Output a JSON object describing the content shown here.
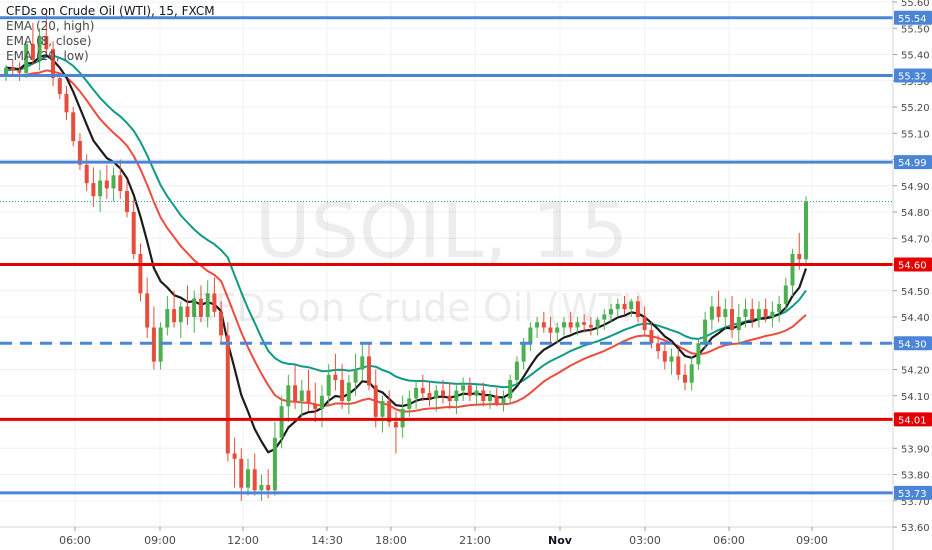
{
  "header": {
    "title": "CFDs on Crude Oil (WTI), 15, FXCM",
    "indicators": [
      "EMA (20, high)",
      "EMA (8, close)",
      "EMA (20, low)"
    ]
  },
  "watermark": {
    "symbol": "USOIL, 15",
    "description": "CFDs on Crude Oil (WTI)"
  },
  "colors": {
    "up": "#4caf50",
    "down": "#e84c3d",
    "ema_high": "#0f9a86",
    "ema_close": "#1c1c1c",
    "ema_low": "#ef4b3f",
    "support_blue": "#4a85d8",
    "level_red": "#e40000",
    "price_line": "#26a69a"
  },
  "chart_data": {
    "type": "candlestick",
    "ylim": [
      53.6,
      55.6
    ],
    "y_ticks": [
      "55.60",
      "55.50",
      "55.40",
      "55.30",
      "55.20",
      "55.10",
      "55.00",
      "54.90",
      "54.80",
      "54.70",
      "54.60",
      "54.50",
      "54.40",
      "54.30",
      "54.20",
      "54.10",
      "54.00",
      "53.90",
      "53.80",
      "53.70",
      "53.60"
    ],
    "x_ticks": [
      "06:00",
      "09:00",
      "12:00",
      "14:30",
      "18:00",
      "21:00",
      "Nov",
      "03:00",
      "06:00",
      "09:00"
    ],
    "horizontal_levels": [
      {
        "value": 55.54,
        "label": "55.54",
        "color": "#4a85d8",
        "style": "solid"
      },
      {
        "value": 55.32,
        "label": "55.32",
        "color": "#4a85d8",
        "style": "solid"
      },
      {
        "value": 54.99,
        "label": "54.99",
        "color": "#4a85d8",
        "style": "solid"
      },
      {
        "value": 54.6,
        "label": "54.60",
        "color": "#e40000",
        "style": "solid"
      },
      {
        "value": 54.3,
        "label": "54.30",
        "color": "#4a85d8",
        "style": "dashed"
      },
      {
        "value": 54.01,
        "label": "54.01",
        "color": "#e40000",
        "style": "solid"
      },
      {
        "value": 53.73,
        "label": "53.73",
        "color": "#4a85d8",
        "style": "solid"
      }
    ],
    "last_price": 54.84,
    "candles": [
      [
        55.32,
        55.36,
        55.3,
        55.35
      ],
      [
        55.35,
        55.38,
        55.32,
        55.34
      ],
      [
        55.34,
        55.37,
        55.3,
        55.33
      ],
      [
        55.33,
        55.45,
        55.31,
        55.44
      ],
      [
        55.44,
        55.52,
        55.36,
        55.38
      ],
      [
        55.38,
        55.5,
        55.34,
        55.47
      ],
      [
        55.47,
        55.56,
        55.4,
        55.42
      ],
      [
        55.42,
        55.45,
        55.28,
        55.31
      ],
      [
        55.31,
        55.33,
        55.23,
        55.25
      ],
      [
        55.25,
        55.28,
        55.15,
        55.18
      ],
      [
        55.18,
        55.2,
        55.05,
        55.07
      ],
      [
        55.07,
        55.1,
        54.96,
        54.98
      ],
      [
        54.98,
        55.02,
        54.88,
        54.91
      ],
      [
        54.91,
        54.97,
        54.82,
        54.86
      ],
      [
        54.86,
        54.96,
        54.8,
        54.92
      ],
      [
        54.92,
        54.98,
        54.85,
        54.89
      ],
      [
        54.89,
        54.97,
        54.84,
        54.94
      ],
      [
        54.94,
        55.0,
        54.85,
        54.88
      ],
      [
        54.88,
        54.92,
        54.78,
        54.8
      ],
      [
        54.8,
        54.85,
        54.62,
        54.64
      ],
      [
        54.64,
        54.68,
        54.46,
        54.49
      ],
      [
        54.49,
        54.55,
        54.32,
        54.36
      ],
      [
        54.36,
        54.44,
        54.2,
        54.23
      ],
      [
        54.23,
        54.38,
        54.2,
        54.36
      ],
      [
        54.36,
        54.48,
        54.33,
        54.43
      ],
      [
        54.43,
        54.5,
        54.36,
        54.38
      ],
      [
        54.38,
        54.46,
        54.32,
        54.44
      ],
      [
        54.44,
        54.52,
        54.37,
        54.4
      ],
      [
        54.4,
        54.5,
        54.34,
        54.47
      ],
      [
        54.47,
        54.52,
        54.38,
        54.4
      ],
      [
        54.4,
        54.54,
        54.36,
        54.49
      ],
      [
        54.49,
        54.55,
        54.4,
        54.42
      ],
      [
        54.42,
        54.46,
        54.3,
        54.33
      ],
      [
        54.33,
        54.38,
        53.85,
        53.88
      ],
      [
        53.88,
        53.94,
        53.75,
        53.86
      ],
      [
        53.86,
        53.9,
        53.7,
        53.75
      ],
      [
        53.75,
        53.86,
        53.72,
        53.82
      ],
      [
        53.82,
        53.88,
        53.72,
        53.74
      ],
      [
        53.74,
        53.8,
        53.7,
        53.76
      ],
      [
        53.76,
        53.82,
        53.71,
        53.74
      ],
      [
        53.74,
        54.0,
        53.72,
        53.94
      ],
      [
        53.94,
        54.1,
        53.9,
        54.06
      ],
      [
        54.06,
        54.18,
        54.0,
        54.14
      ],
      [
        54.14,
        54.22,
        54.05,
        54.08
      ],
      [
        54.08,
        54.16,
        54.02,
        54.12
      ],
      [
        54.12,
        54.2,
        54.04,
        54.07
      ],
      [
        54.07,
        54.15,
        54.0,
        54.05
      ],
      [
        54.05,
        54.14,
        53.98,
        54.1
      ],
      [
        54.1,
        54.22,
        54.06,
        54.18
      ],
      [
        54.18,
        54.26,
        54.12,
        54.16
      ],
      [
        54.16,
        54.22,
        54.05,
        54.08
      ],
      [
        54.08,
        54.18,
        54.03,
        54.15
      ],
      [
        54.15,
        54.26,
        54.1,
        54.2
      ],
      [
        54.2,
        54.3,
        54.16,
        54.25
      ],
      [
        54.25,
        54.3,
        54.12,
        54.14
      ],
      [
        54.14,
        54.2,
        53.98,
        54.02
      ],
      [
        54.02,
        54.1,
        53.96,
        54.08
      ],
      [
        54.08,
        54.12,
        53.98,
        54.0
      ],
      [
        54.0,
        54.04,
        53.88,
        53.98
      ],
      [
        53.98,
        54.1,
        53.94,
        54.05
      ],
      [
        54.05,
        54.12,
        54.02,
        54.09
      ],
      [
        54.09,
        54.16,
        54.05,
        54.13
      ],
      [
        54.13,
        54.18,
        54.08,
        54.11
      ],
      [
        54.11,
        54.15,
        54.06,
        54.09
      ],
      [
        54.09,
        54.14,
        54.04,
        54.12
      ],
      [
        54.12,
        54.16,
        54.07,
        54.1
      ],
      [
        54.1,
        54.15,
        54.05,
        54.08
      ],
      [
        54.08,
        54.14,
        54.03,
        54.12
      ],
      [
        54.12,
        54.17,
        54.08,
        54.14
      ],
      [
        54.14,
        54.17,
        54.08,
        54.1
      ],
      [
        54.1,
        54.14,
        54.06,
        54.12
      ],
      [
        54.12,
        54.15,
        54.06,
        54.08
      ],
      [
        54.08,
        54.12,
        54.05,
        54.1
      ],
      [
        54.1,
        54.13,
        54.06,
        54.07
      ],
      [
        54.07,
        54.12,
        54.04,
        54.09
      ],
      [
        54.09,
        54.18,
        54.07,
        54.16
      ],
      [
        54.16,
        54.25,
        54.14,
        54.23
      ],
      [
        54.23,
        54.32,
        54.2,
        54.3
      ],
      [
        54.3,
        54.38,
        54.27,
        54.36
      ],
      [
        54.36,
        54.4,
        54.32,
        54.38
      ],
      [
        54.38,
        54.42,
        54.34,
        54.36
      ],
      [
        54.36,
        54.4,
        54.3,
        54.34
      ],
      [
        54.34,
        54.38,
        54.3,
        54.36
      ],
      [
        54.36,
        54.4,
        54.33,
        54.38
      ],
      [
        54.38,
        54.42,
        54.34,
        54.36
      ],
      [
        54.36,
        54.4,
        54.33,
        54.38
      ],
      [
        54.38,
        54.41,
        54.34,
        54.37
      ],
      [
        54.37,
        54.4,
        54.33,
        54.36
      ],
      [
        54.36,
        54.4,
        54.33,
        54.39
      ],
      [
        54.39,
        54.43,
        54.35,
        54.41
      ],
      [
        54.41,
        54.45,
        54.38,
        54.43
      ],
      [
        54.43,
        54.47,
        54.4,
        54.45
      ],
      [
        54.45,
        54.48,
        54.41,
        54.43
      ],
      [
        54.43,
        54.47,
        54.4,
        54.46
      ],
      [
        54.46,
        54.48,
        54.38,
        54.4
      ],
      [
        54.4,
        54.44,
        54.33,
        54.35
      ],
      [
        54.35,
        54.38,
        54.28,
        54.3
      ],
      [
        54.3,
        54.33,
        54.24,
        54.27
      ],
      [
        54.27,
        54.3,
        54.2,
        54.23
      ],
      [
        54.23,
        54.28,
        54.18,
        54.25
      ],
      [
        54.25,
        54.28,
        54.16,
        54.18
      ],
      [
        54.18,
        54.22,
        54.12,
        54.15
      ],
      [
        54.15,
        54.25,
        54.12,
        54.22
      ],
      [
        54.22,
        54.32,
        54.2,
        54.3
      ],
      [
        54.3,
        54.42,
        54.28,
        54.39
      ],
      [
        54.39,
        54.48,
        54.35,
        54.44
      ],
      [
        54.44,
        54.5,
        54.38,
        54.4
      ],
      [
        54.4,
        54.47,
        54.35,
        54.43
      ],
      [
        54.43,
        54.48,
        54.32,
        54.35
      ],
      [
        54.35,
        54.45,
        54.3,
        54.4
      ],
      [
        54.4,
        54.47,
        54.36,
        54.43
      ],
      [
        54.43,
        54.47,
        54.36,
        54.39
      ],
      [
        54.39,
        54.46,
        54.36,
        54.43
      ],
      [
        54.43,
        54.47,
        54.38,
        54.4
      ],
      [
        54.4,
        54.46,
        54.36,
        54.42
      ],
      [
        54.42,
        54.48,
        54.38,
        54.45
      ],
      [
        54.45,
        54.55,
        54.42,
        54.52
      ],
      [
        54.52,
        54.66,
        54.48,
        54.64
      ],
      [
        54.64,
        54.72,
        54.58,
        54.62
      ],
      [
        54.62,
        54.86,
        54.6,
        54.84
      ]
    ]
  }
}
